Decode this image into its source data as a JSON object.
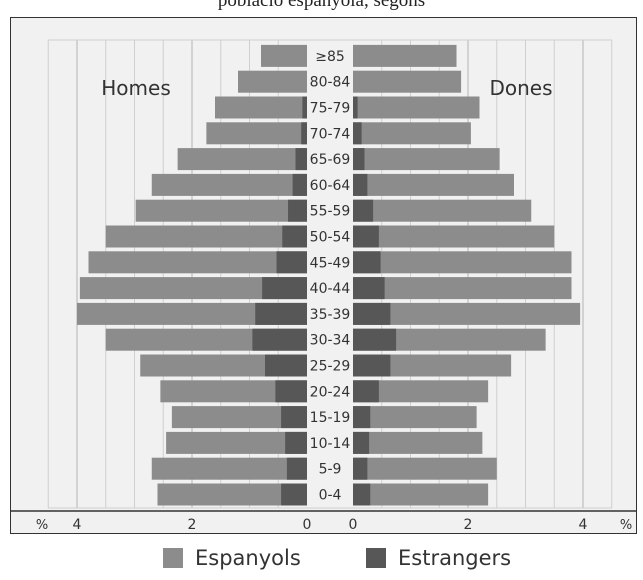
{
  "header_text": "població espanyola, segons",
  "chart_data": {
    "type": "bar",
    "orientation": "horizontal",
    "subtype": "population-pyramid",
    "title": "",
    "side_labels": {
      "left": "Homes",
      "right": "Dones"
    },
    "axis_unit_label": "%",
    "xlim": [
      0,
      4.5
    ],
    "x_ticks": [
      0,
      2,
      4
    ],
    "x_tick_labels": [
      "0",
      "2",
      "4"
    ],
    "grid": true,
    "legend_position": "bottom",
    "categories": [
      "0-4",
      "5-9",
      "10-14",
      "15-19",
      "20-24",
      "25-29",
      "30-34",
      "35-39",
      "40-44",
      "45-49",
      "50-54",
      "55-59",
      "60-64",
      "65-69",
      "70-74",
      "75-79",
      "80-84",
      "≥85"
    ],
    "series": [
      {
        "name": "Espanyols",
        "color": "#8c8c8c",
        "men": [
          2.6,
          2.7,
          2.45,
          2.35,
          2.55,
          2.9,
          3.5,
          4.0,
          3.95,
          3.8,
          3.5,
          2.98,
          2.7,
          2.25,
          1.75,
          1.6,
          1.2,
          0.8
        ],
        "women": [
          2.35,
          2.5,
          2.25,
          2.15,
          2.35,
          2.75,
          3.35,
          3.95,
          3.8,
          3.8,
          3.5,
          3.1,
          2.8,
          2.55,
          2.05,
          2.2,
          1.88,
          1.8
        ]
      },
      {
        "name": "Estrangers",
        "color": "#575757",
        "men": [
          0.45,
          0.35,
          0.38,
          0.45,
          0.55,
          0.73,
          0.95,
          0.9,
          0.78,
          0.53,
          0.43,
          0.33,
          0.25,
          0.2,
          0.1,
          0.08,
          0.0,
          0.0
        ],
        "women": [
          0.3,
          0.25,
          0.28,
          0.3,
          0.45,
          0.65,
          0.75,
          0.65,
          0.55,
          0.48,
          0.45,
          0.35,
          0.25,
          0.2,
          0.15,
          0.08,
          0.0,
          0.0
        ]
      }
    ]
  }
}
